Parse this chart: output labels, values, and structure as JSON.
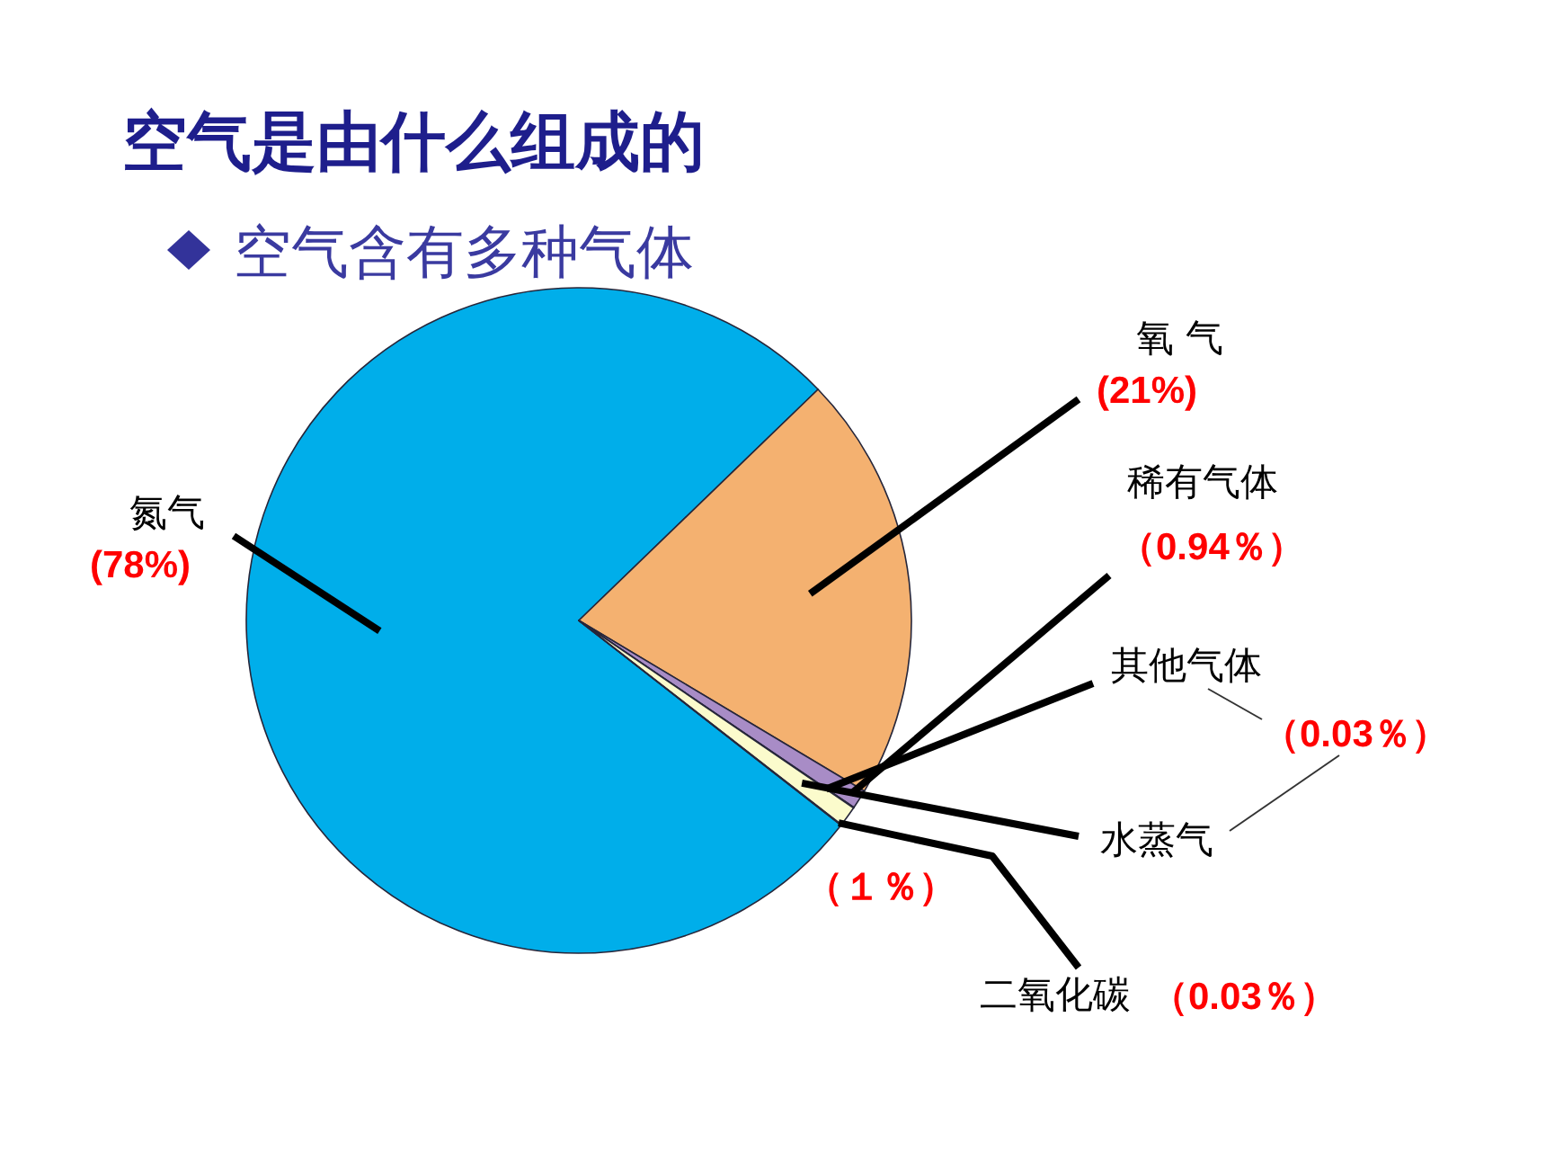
{
  "chart_data": {
    "type": "pie",
    "title": "空气是由什么组成的",
    "subtitle": "空气含有多种气体",
    "categories": [
      "氮气",
      "氧 气",
      "稀有气体",
      "其他气体",
      "水蒸气",
      "二氧化碳"
    ],
    "values": [
      78,
      21,
      0.94,
      0.03,
      1,
      0.03
    ],
    "value_labels": [
      "(78%)",
      "(21%)",
      "（0.94％）",
      "（0.03％）",
      "（１％）",
      "（0.03％）"
    ],
    "colors": [
      "#00aeea",
      "#f4b170",
      "#a88cc6",
      "#c6e4c4",
      "#fbfbcc",
      "#f5b5d0"
    ]
  }
}
